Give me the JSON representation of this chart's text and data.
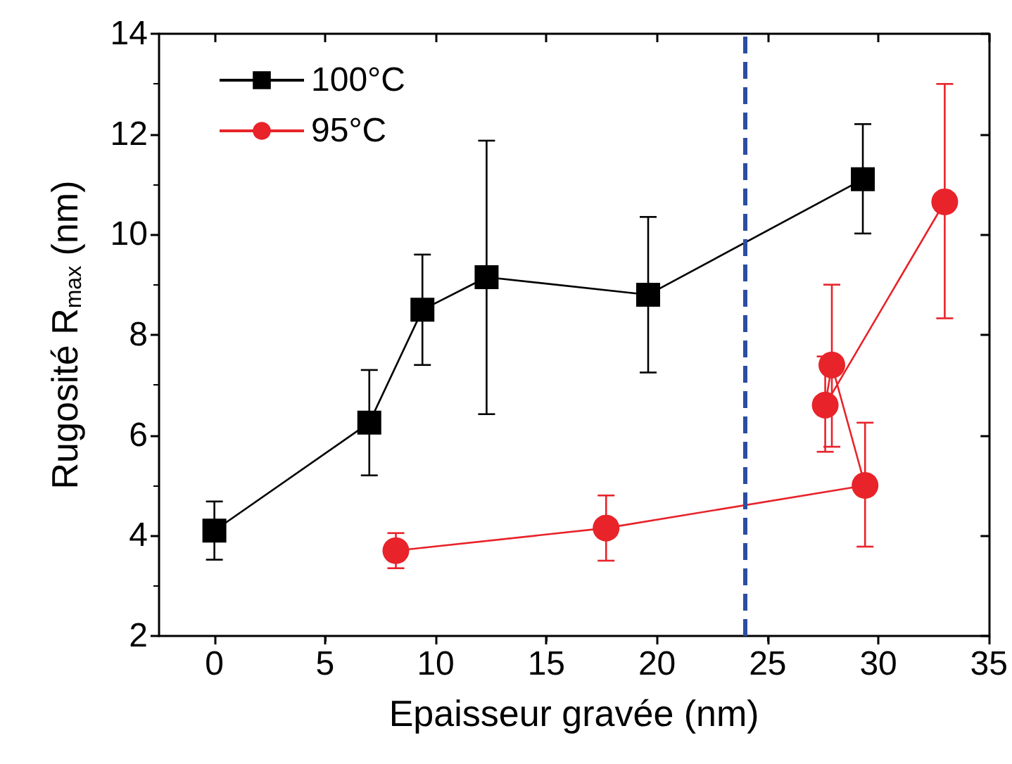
{
  "chart_data": {
    "type": "line",
    "xlabel": "Epaisseur gravée (nm)",
    "ylabel": "Rugosité R$_{max}$ (nm)",
    "xlim": [
      -2.5,
      35
    ],
    "xticks": [
      0,
      5,
      10,
      15,
      20,
      25,
      30,
      35
    ],
    "ylim": [
      2,
      14
    ],
    "yticks": [
      2,
      4,
      6,
      8,
      10,
      12,
      14
    ],
    "grid": false,
    "legend": "top left",
    "series": [
      {
        "name": "100°C",
        "color": "#000000",
        "marker": "square",
        "x": [
          0,
          7.0,
          9.4,
          12.3,
          19.6,
          29.3
        ],
        "values": [
          4.1,
          6.25,
          8.5,
          9.15,
          8.8,
          11.1
        ],
        "errors": [
          [
            3.52,
            4.68
          ],
          [
            5.2,
            7.3
          ],
          [
            7.4,
            9.6
          ],
          [
            6.42,
            11.87
          ],
          [
            7.25,
            10.35
          ],
          [
            10.02,
            12.2
          ]
        ]
      },
      {
        "name": "95°C",
        "color": "#e8232a",
        "marker": "circle",
        "x": [
          8.2,
          17.7,
          29.4,
          27.9,
          27.6,
          33.0
        ],
        "values": [
          3.7,
          4.15,
          5.0,
          7.4,
          6.6,
          10.65
        ],
        "errors": [
          [
            3.35,
            4.05
          ],
          [
            3.5,
            4.8
          ],
          [
            3.78,
            6.25
          ],
          [
            5.77,
            9.0
          ],
          [
            5.67,
            7.57
          ],
          [
            8.33,
            13.0
          ]
        ]
      }
    ],
    "ref_lines": [
      {
        "axis": "x",
        "value": 24,
        "color": "#2b4ea0",
        "line_style": "dashed"
      }
    ]
  }
}
